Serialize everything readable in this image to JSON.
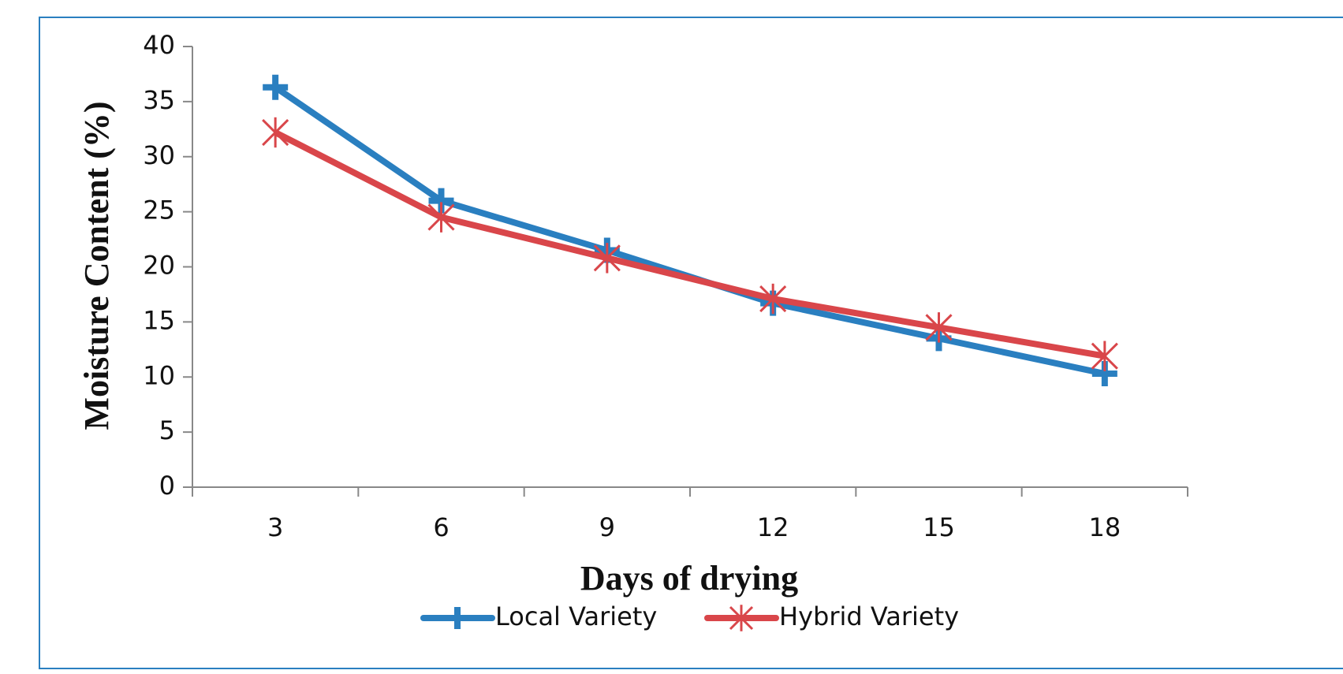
{
  "chart_data": {
    "type": "line",
    "x_label": "Days of drying",
    "y_label": "Moisture Content (%)",
    "categories": [
      "3",
      "6",
      "9",
      "12",
      "15",
      "18"
    ],
    "series": [
      {
        "name": "Local Variety",
        "color": "#2a7fc0",
        "marker": "plus",
        "values": [
          36.3,
          26,
          21.5,
          16.7,
          13.5,
          10.3
        ]
      },
      {
        "name": "Hybrid Variety",
        "color": "#d9464a",
        "marker": "asterisk",
        "values": [
          32.2,
          24.5,
          20.8,
          17.1,
          14.5,
          11.9
        ]
      }
    ],
    "ylim": [
      0,
      40
    ],
    "yticks": [
      0,
      5,
      10,
      15,
      20,
      25,
      30,
      35,
      40
    ],
    "grid": false,
    "legend": "bottom"
  }
}
